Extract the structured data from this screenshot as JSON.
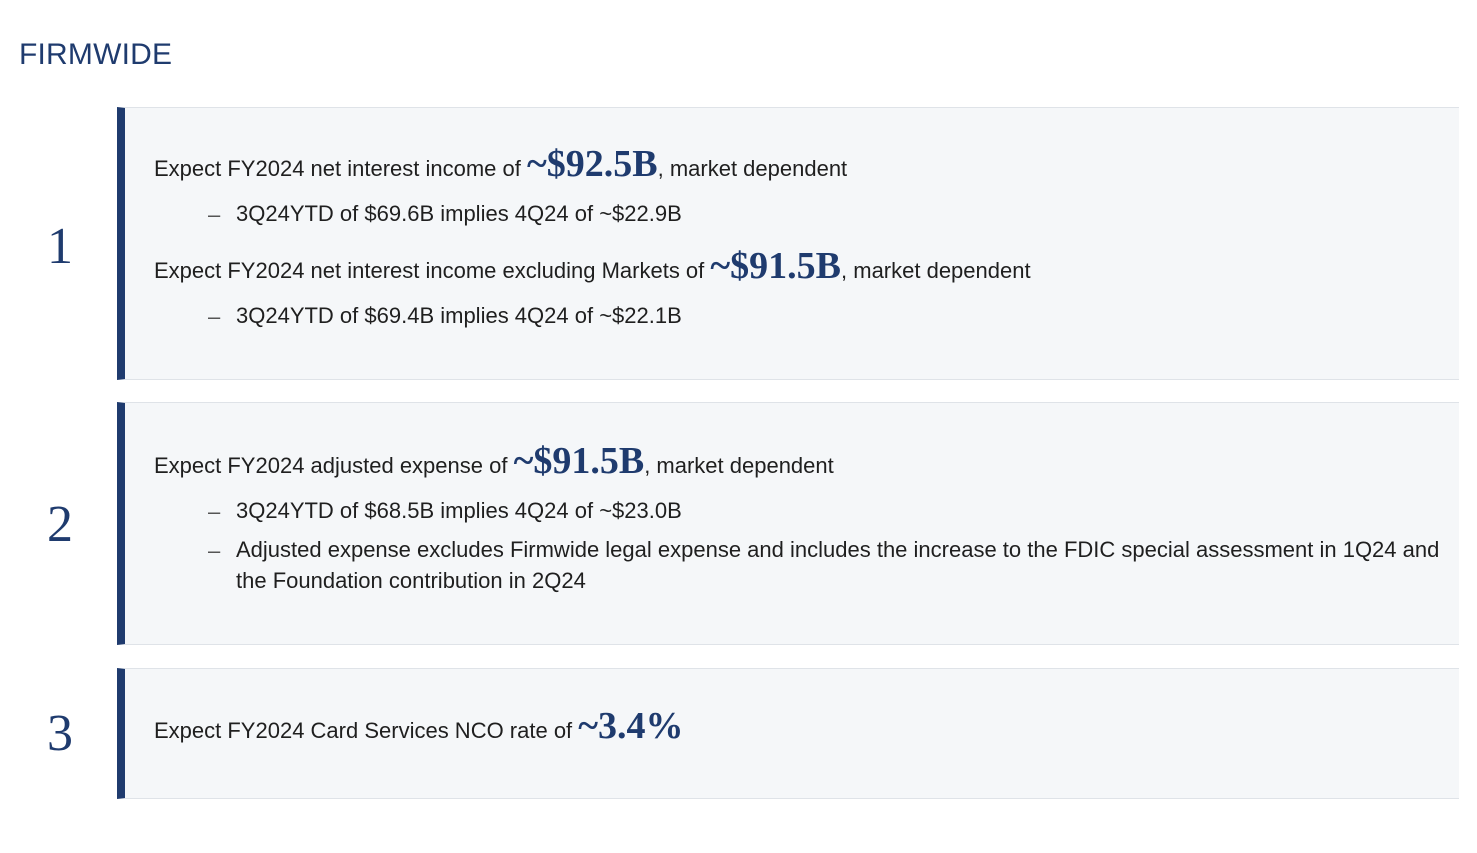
{
  "section_title": "FIRMWIDE",
  "items": [
    {
      "number": "1",
      "lines": [
        {
          "prefix": "Expect FY2024 net interest income of ",
          "value": "~$92.5B",
          "suffix": ", market dependent",
          "bullets": [
            "3Q24YTD of $69.6B implies 4Q24 of ~$22.9B"
          ]
        },
        {
          "prefix": "Expect FY2024 net interest income excluding Markets of ",
          "value": "~$91.5B",
          "suffix": ", market dependent",
          "bullets": [
            "3Q24YTD of $69.4B implies 4Q24 of ~$22.1B"
          ]
        }
      ]
    },
    {
      "number": "2",
      "lines": [
        {
          "prefix": "Expect FY2024 adjusted expense of ",
          "value": "~$91.5B",
          "suffix": ", market dependent",
          "bullets": [
            "3Q24YTD of $68.5B implies 4Q24 of ~$23.0B",
            "Adjusted expense excludes Firmwide legal expense and includes the increase to the FDIC special assessment in 1Q24 and the Foundation contribution in 2Q24"
          ]
        }
      ]
    },
    {
      "number": "3",
      "lines": [
        {
          "prefix": "Expect FY2024 Card Services NCO rate of ",
          "value": "~3.4%",
          "suffix": "",
          "bullets": []
        }
      ]
    }
  ],
  "dash_glyph": "–"
}
